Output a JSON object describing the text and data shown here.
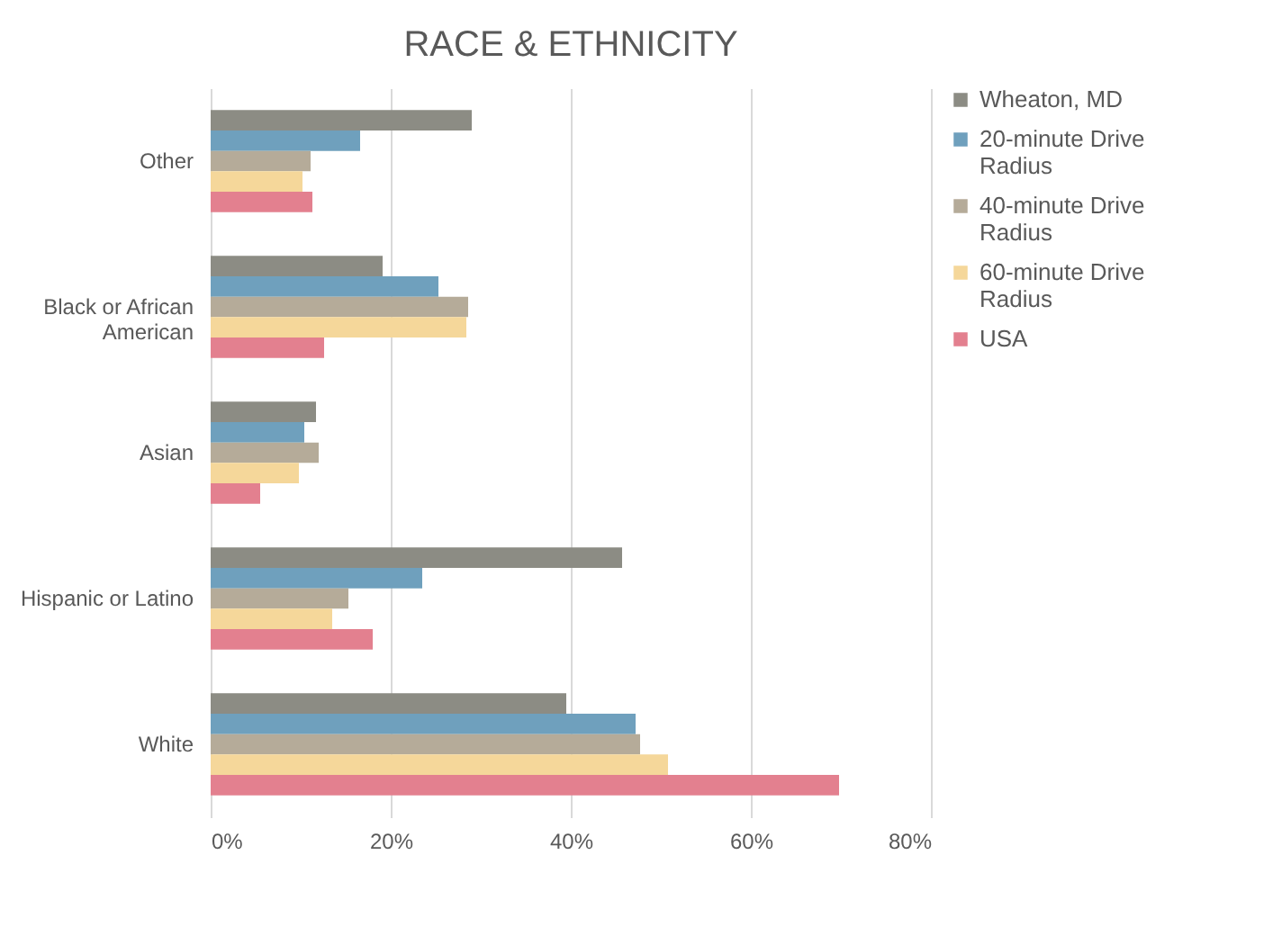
{
  "chart_data": {
    "type": "bar",
    "orientation": "horizontal",
    "title": "RACE & ETHNICITY",
    "categories": [
      "Other",
      "Black or African American",
      "Asian",
      "Hispanic or Latino",
      "White"
    ],
    "series": [
      {
        "name": "Wheaton, MD",
        "color": "#8c8c84",
        "values": [
          29.0,
          19.1,
          11.7,
          45.7,
          39.5
        ]
      },
      {
        "name": "20-minute Drive Radius",
        "color": "#6fa0bd",
        "values": [
          16.6,
          25.3,
          10.4,
          23.5,
          47.2
        ]
      },
      {
        "name": "40-minute Drive Radius",
        "color": "#b5ab99",
        "values": [
          11.1,
          28.6,
          12.0,
          15.3,
          47.7
        ]
      },
      {
        "name": "60-minute Drive Radius",
        "color": "#f5d79a",
        "values": [
          10.2,
          28.4,
          9.8,
          13.5,
          50.8
        ]
      },
      {
        "name": "USA",
        "color": "#e3808f",
        "values": [
          11.3,
          12.6,
          5.5,
          18.0,
          69.8
        ]
      }
    ],
    "xlim": [
      0,
      80
    ],
    "xticks": [
      {
        "value": 0,
        "label": "0%"
      },
      {
        "value": 20,
        "label": "20%"
      },
      {
        "value": 40,
        "label": "40%"
      },
      {
        "value": 60,
        "label": "60%"
      },
      {
        "value": 80,
        "label": "80%"
      }
    ],
    "grid": "x",
    "legend": "right"
  }
}
